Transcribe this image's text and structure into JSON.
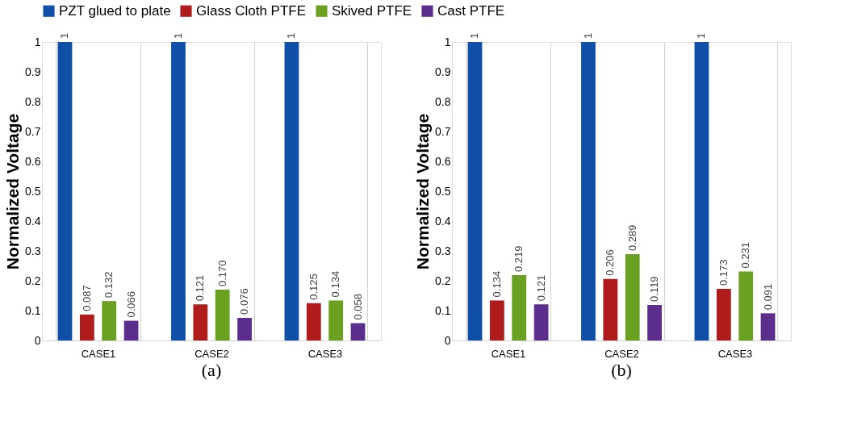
{
  "chart_data": [
    {
      "type": "bar",
      "categories": [
        "CASE1",
        "CASE2",
        "CASE3"
      ],
      "ylabel": "Normalized Voltage",
      "ylim": [
        0,
        1
      ],
      "yticks": [
        0,
        0.1,
        0.2,
        0.3,
        0.4,
        0.5,
        0.6,
        0.7,
        0.8,
        0.9,
        1
      ],
      "grid": "x",
      "legend": "top",
      "annotations": [
        "(a)"
      ],
      "series": [
        {
          "name": "PZT glued to plate",
          "color": "#0f4fa8",
          "values": [
            1,
            1,
            1
          ],
          "value_labels": [
            "1",
            "1",
            "1"
          ]
        },
        {
          "name": "Glass Cloth PTFE",
          "color": "#b01c1c",
          "values": [
            0.087,
            0.121,
            0.125
          ],
          "value_labels": [
            "0.087",
            "0.121",
            "0.125"
          ]
        },
        {
          "name": "Skived PTFE",
          "color": "#6aa121",
          "values": [
            0.132,
            0.17,
            0.134
          ],
          "value_labels": [
            "0.132",
            "0.170",
            "0.134"
          ]
        },
        {
          "name": "Cast PTFE",
          "color": "#5b2d8c",
          "values": [
            0.066,
            0.076,
            0.058
          ],
          "value_labels": [
            "0.066",
            "0.076",
            "0.058"
          ]
        }
      ]
    },
    {
      "type": "bar",
      "categories": [
        "CASE1",
        "CASE2",
        "CASE3"
      ],
      "ylabel": "Normalized Voltage",
      "ylim": [
        0,
        1
      ],
      "yticks": [
        0,
        0.1,
        0.2,
        0.3,
        0.4,
        0.5,
        0.6,
        0.7,
        0.8,
        0.9,
        1
      ],
      "grid": "x",
      "legend": "top",
      "annotations": [
        "(b)"
      ],
      "series": [
        {
          "name": "PZT glued to plate",
          "color": "#0f4fa8",
          "values": [
            1,
            1,
            1
          ],
          "value_labels": [
            "1",
            "1",
            "1"
          ]
        },
        {
          "name": "Glass Cloth PTFE",
          "color": "#b01c1c",
          "values": [
            0.134,
            0.206,
            0.173
          ],
          "value_labels": [
            "0.134",
            "0.206",
            "0.173"
          ]
        },
        {
          "name": "Skived PTFE",
          "color": "#6aa121",
          "values": [
            0.219,
            0.289,
            0.231
          ],
          "value_labels": [
            "0.219",
            "0.289",
            "0.231"
          ]
        },
        {
          "name": "Cast PTFE",
          "color": "#5b2d8c",
          "values": [
            0.121,
            0.119,
            0.091
          ],
          "value_labels": [
            "0.121",
            "0.119",
            "0.091"
          ]
        }
      ]
    }
  ]
}
